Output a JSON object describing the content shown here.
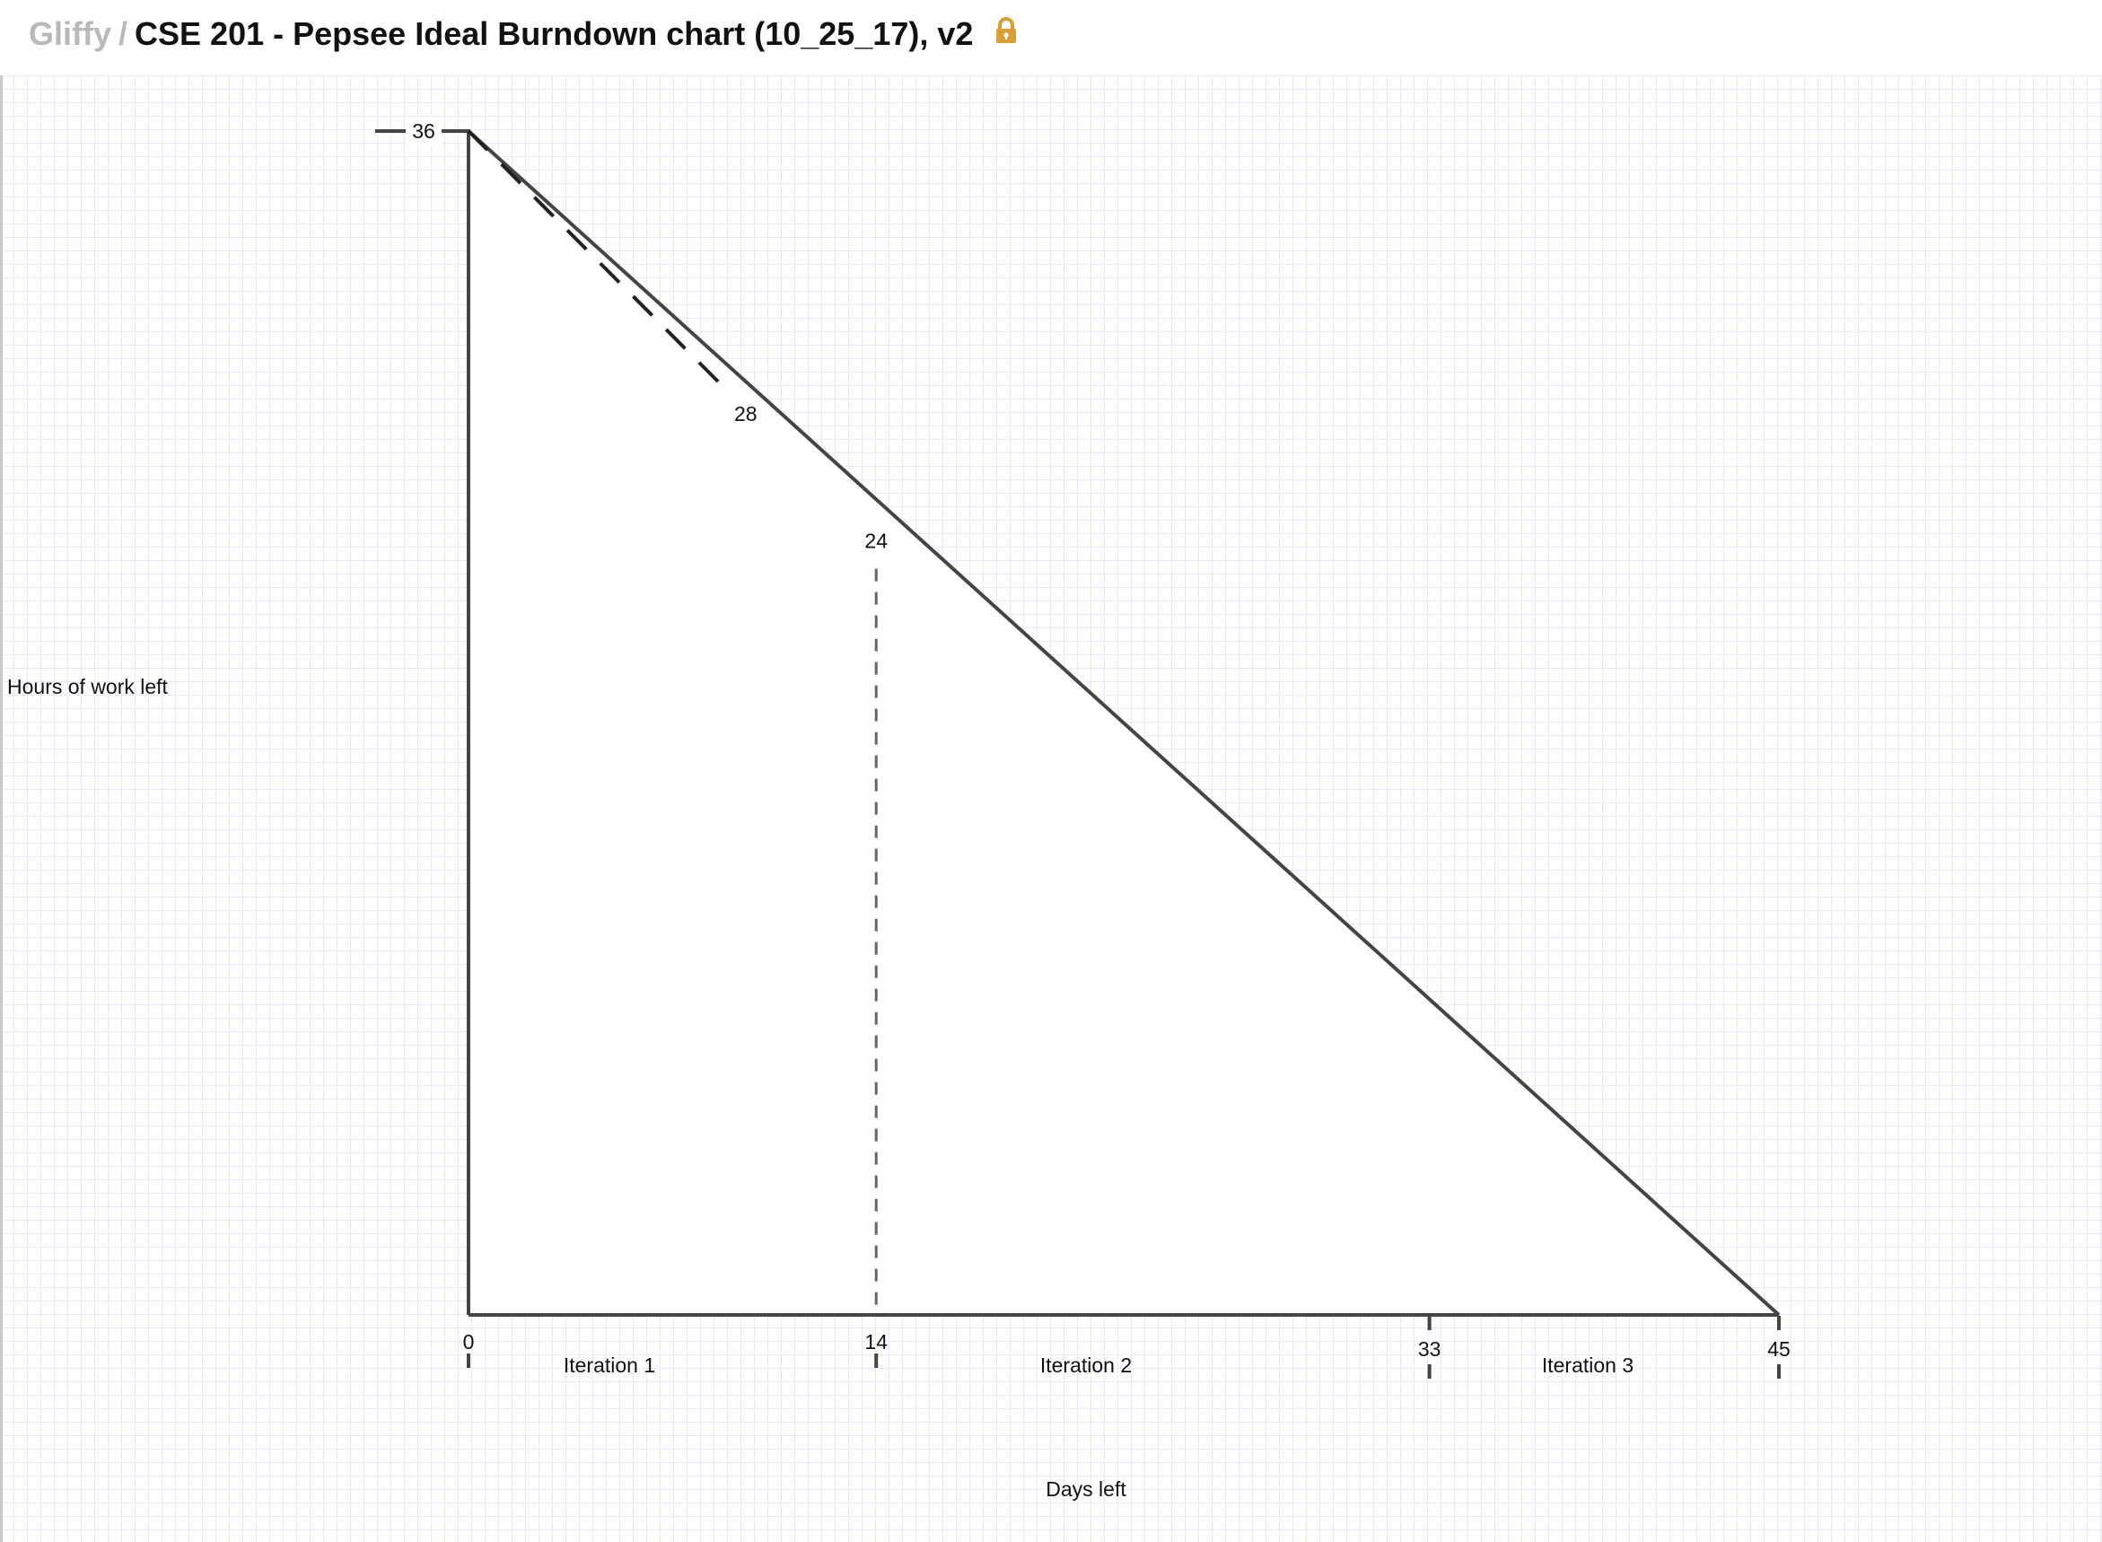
{
  "header": {
    "breadcrumb_root": "Gliffy",
    "breadcrumb_separator": "/",
    "title": "CSE 201 - Pepsee Ideal Burndown chart (10_25_17), v2",
    "lock_icon": "lock-icon",
    "lock_color": "#d8a032"
  },
  "chart_data": {
    "type": "line",
    "ylabel": "Hours of work left",
    "xlabel": "Days left",
    "y_tick_labels": [
      "36"
    ],
    "x_tick_labels": [
      "0",
      "14",
      "33",
      "45"
    ],
    "iterations": [
      "Iteration 1",
      "Iteration 2",
      "Iteration 3"
    ],
    "ideal_line": {
      "points": [
        [
          0,
          36
        ],
        [
          45,
          0
        ]
      ]
    },
    "actual_line": {
      "style": "dashed",
      "points": [
        [
          0,
          36
        ],
        [
          9,
          28
        ]
      ],
      "end_label": "28"
    },
    "marker": {
      "style": "dashed",
      "x": 14,
      "y": 24,
      "label": "24"
    },
    "fill_color": "#ffffff",
    "line_color": "#444444"
  }
}
